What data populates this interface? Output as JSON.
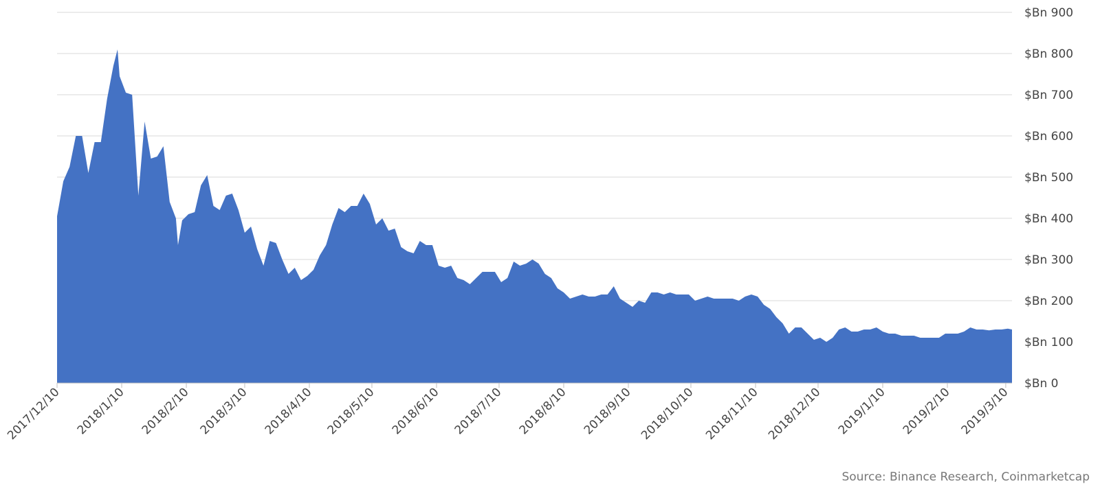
{
  "chart_data": {
    "type": "area",
    "color": "#4472c4",
    "grid": true,
    "source": "Source: Binance Research, Coinmarketcap",
    "x": [
      "2017/12/10",
      "2017/12/13",
      "2017/12/16",
      "2017/12/19",
      "2017/12/22",
      "2017/12/25",
      "2017/12/28",
      "2017/12/31",
      "2018/1/3",
      "2018/1/6",
      "2018/1/8",
      "2018/1/9",
      "2018/1/12",
      "2018/1/15",
      "2018/1/18",
      "2018/1/21",
      "2018/1/24",
      "2018/1/27",
      "2018/1/30",
      "2018/2/2",
      "2018/2/5",
      "2018/2/6",
      "2018/2/8",
      "2018/2/11",
      "2018/2/14",
      "2018/2/17",
      "2018/2/20",
      "2018/2/23",
      "2018/2/26",
      "2018/3/1",
      "2018/3/4",
      "2018/3/7",
      "2018/3/10",
      "2018/3/13",
      "2018/3/16",
      "2018/3/19",
      "2018/3/22",
      "2018/3/25",
      "2018/3/28",
      "2018/3/31",
      "2018/4/3",
      "2018/4/6",
      "2018/4/9",
      "2018/4/12",
      "2018/4/15",
      "2018/4/18",
      "2018/4/21",
      "2018/4/24",
      "2018/4/27",
      "2018/4/30",
      "2018/5/3",
      "2018/5/6",
      "2018/5/9",
      "2018/5/12",
      "2018/5/15",
      "2018/5/18",
      "2018/5/21",
      "2018/5/24",
      "2018/5/27",
      "2018/5/30",
      "2018/6/2",
      "2018/6/5",
      "2018/6/8",
      "2018/6/11",
      "2018/6/14",
      "2018/6/17",
      "2018/6/20",
      "2018/6/23",
      "2018/6/26",
      "2018/6/29",
      "2018/7/2",
      "2018/7/5",
      "2018/7/8",
      "2018/7/11",
      "2018/7/14",
      "2018/7/17",
      "2018/7/20",
      "2018/7/23",
      "2018/7/26",
      "2018/7/29",
      "2018/8/1",
      "2018/8/4",
      "2018/8/7",
      "2018/8/10",
      "2018/8/13",
      "2018/8/16",
      "2018/8/19",
      "2018/8/22",
      "2018/8/25",
      "2018/8/28",
      "2018/8/31",
      "2018/9/3",
      "2018/9/6",
      "2018/9/9",
      "2018/9/12",
      "2018/9/15",
      "2018/9/18",
      "2018/9/21",
      "2018/9/24",
      "2018/9/27",
      "2018/9/30",
      "2018/10/3",
      "2018/10/6",
      "2018/10/9",
      "2018/10/12",
      "2018/10/15",
      "2018/10/18",
      "2018/10/21",
      "2018/10/24",
      "2018/10/27",
      "2018/10/30",
      "2018/11/2",
      "2018/11/5",
      "2018/11/8",
      "2018/11/11",
      "2018/11/14",
      "2018/11/17",
      "2018/11/20",
      "2018/11/23",
      "2018/11/26",
      "2018/11/29",
      "2018/12/2",
      "2018/12/5",
      "2018/12/8",
      "2018/12/11",
      "2018/12/14",
      "2018/12/17",
      "2018/12/20",
      "2018/12/23",
      "2018/12/26",
      "2018/12/29",
      "2019/1/1",
      "2019/1/4",
      "2019/1/7",
      "2019/1/10",
      "2019/1/13",
      "2019/1/16",
      "2019/1/19",
      "2019/1/22",
      "2019/1/25",
      "2019/1/28",
      "2019/1/31",
      "2019/2/3",
      "2019/2/6",
      "2019/2/9",
      "2019/2/12",
      "2019/2/15",
      "2019/2/18",
      "2019/2/21",
      "2019/2/24",
      "2019/2/27",
      "2019/3/2",
      "2019/3/5",
      "2019/3/8",
      "2019/3/11",
      "2019/3/13"
    ],
    "values": [
      405,
      490,
      525,
      600,
      600,
      510,
      585,
      585,
      690,
      770,
      810,
      745,
      705,
      700,
      455,
      635,
      545,
      550,
      575,
      440,
      400,
      335,
      395,
      410,
      415,
      480,
      505,
      430,
      420,
      455,
      460,
      420,
      365,
      380,
      325,
      285,
      345,
      340,
      300,
      265,
      280,
      250,
      260,
      275,
      310,
      335,
      385,
      425,
      415,
      430,
      430,
      460,
      435,
      385,
      400,
      370,
      375,
      330,
      320,
      315,
      345,
      335,
      335,
      285,
      280,
      285,
      255,
      250,
      240,
      255,
      270,
      270,
      270,
      245,
      255,
      295,
      285,
      290,
      300,
      290,
      265,
      255,
      230,
      220,
      205,
      210,
      215,
      210,
      210,
      215,
      215,
      235,
      205,
      195,
      185,
      200,
      195,
      220,
      220,
      215,
      220,
      215,
      215,
      215,
      200,
      205,
      210,
      205,
      205,
      205,
      205,
      200,
      210,
      215,
      210,
      190,
      180,
      160,
      145,
      120,
      135,
      135,
      120,
      105,
      110,
      100,
      110,
      130,
      135,
      125,
      125,
      130,
      130,
      135,
      125,
      120,
      120,
      115,
      115,
      115,
      110,
      110,
      110,
      110,
      120,
      120,
      120,
      125,
      135,
      130,
      130,
      128,
      130,
      130,
      132,
      130
    ],
    "xlim": [
      "2017/12/10",
      "2019/3/13"
    ],
    "xticks": [
      "2017/12/10",
      "2018/1/10",
      "2018/2/10",
      "2018/3/10",
      "2018/4/10",
      "2018/5/10",
      "2018/6/10",
      "2018/7/10",
      "2018/8/10",
      "2018/9/10",
      "2018/10/10",
      "2018/11/10",
      "2018/12/10",
      "2019/1/10",
      "2019/2/10",
      "2019/3/10"
    ],
    "ylim": [
      0,
      900
    ],
    "yticks": [
      {
        "value": 0,
        "label": "$Bn 0"
      },
      {
        "value": 100,
        "label": "$Bn 100"
      },
      {
        "value": 200,
        "label": "$Bn 200"
      },
      {
        "value": 300,
        "label": "$Bn 300"
      },
      {
        "value": 400,
        "label": "$Bn 400"
      },
      {
        "value": 500,
        "label": "$Bn 500"
      },
      {
        "value": 600,
        "label": "$Bn 600"
      },
      {
        "value": 700,
        "label": "$Bn 700"
      },
      {
        "value": 800,
        "label": "$Bn 800"
      },
      {
        "value": 900,
        "label": "$Bn 900"
      }
    ]
  }
}
